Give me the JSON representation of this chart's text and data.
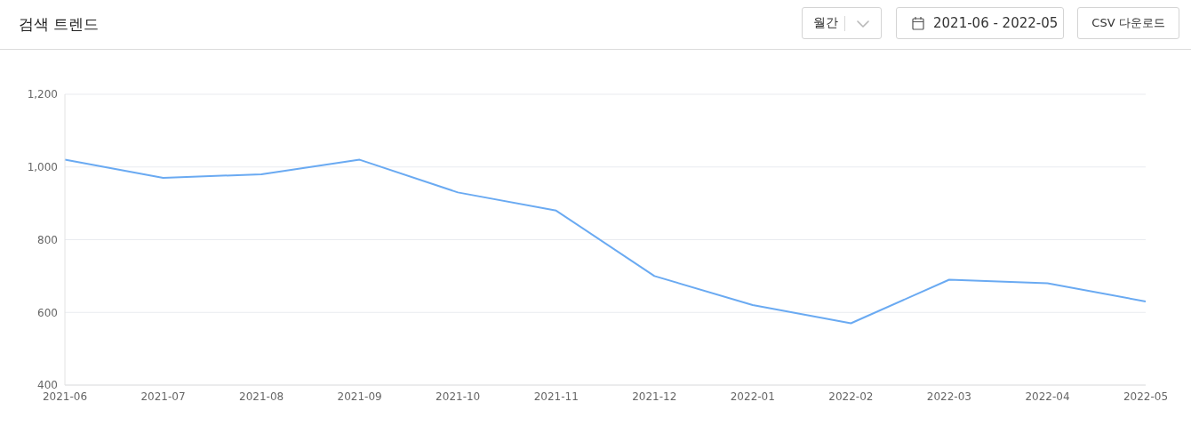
{
  "chart_data": {
    "type": "line",
    "title": "검색 트렌드",
    "annotations": [
      "월간",
      "2021-06 - 2022-05",
      "CSV 다운로드"
    ],
    "categories": [
      "2021-06",
      "2021-07",
      "2021-08",
      "2021-09",
      "2021-10",
      "2021-11",
      "2021-12",
      "2022-01",
      "2022-02",
      "2022-03",
      "2022-04",
      "2022-05"
    ],
    "values": [
      1020,
      970,
      980,
      1020,
      930,
      880,
      700,
      620,
      570,
      690,
      680,
      630
    ],
    "color": "#6aaaf2",
    "ylim": [
      400,
      1200
    ],
    "yticks": [
      400,
      600,
      800,
      {
        "value": 1000,
        "label": "1,000"
      },
      {
        "value": 1200,
        "label": "1,200"
      }
    ],
    "grid": "y"
  }
}
